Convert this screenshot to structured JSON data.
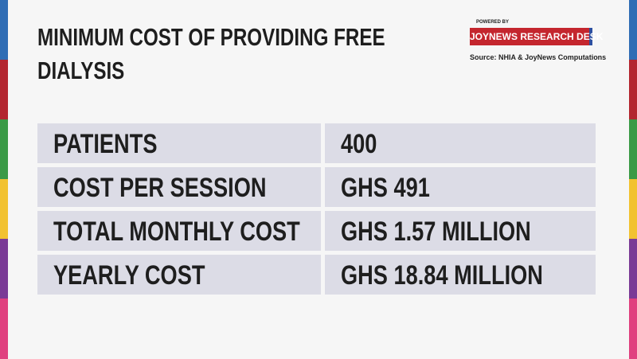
{
  "header": {
    "title": "MINIMUM COST OF PROVIDING FREE DIALYSIS"
  },
  "branding": {
    "powered_by": "POWERED BY",
    "desk": "JOYNEWS RESEARCH DESK",
    "source": "Source: NHIA & JoyNews Computations"
  },
  "table": {
    "rows": [
      [
        "PATIENTS",
        "400"
      ],
      [
        "COST PER SESSION",
        "GHS 491"
      ],
      [
        "TOTAL MONTHLY COST",
        "GHS 1.57 MILLION"
      ],
      [
        "YEARLY COST",
        "GHS 18.84 MILLION"
      ]
    ]
  }
}
